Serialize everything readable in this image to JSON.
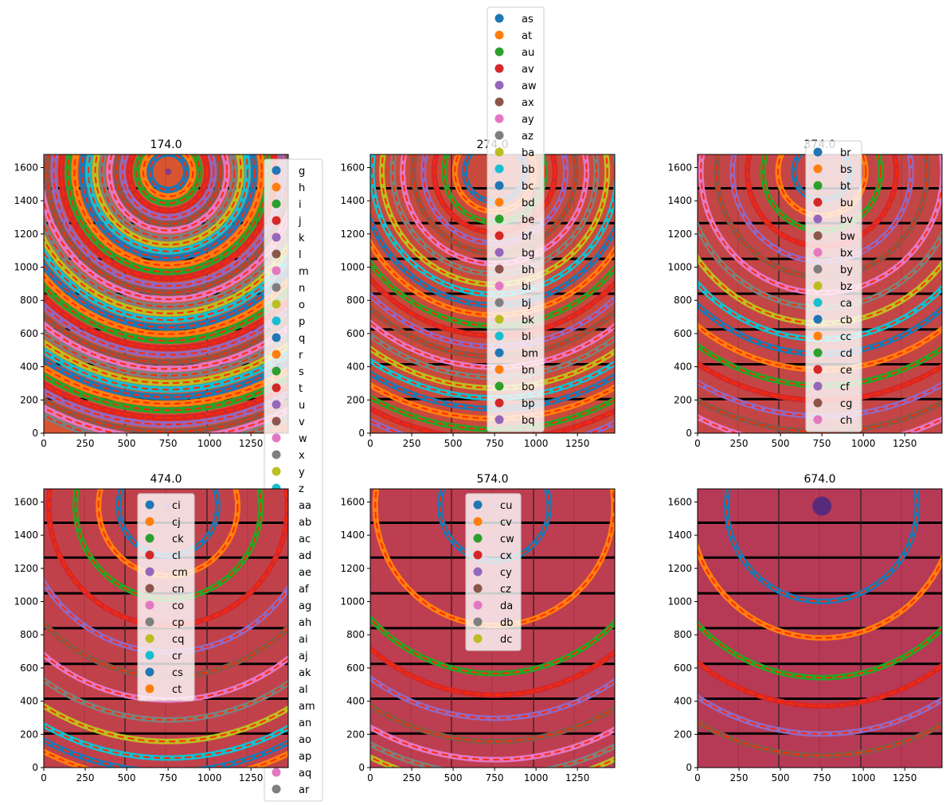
{
  "tab10": [
    "#1f77b4",
    "#ff7f0e",
    "#2ca02c",
    "#d62728",
    "#9467bd",
    "#8c564b",
    "#e377c2",
    "#7f7f7f",
    "#bcbd22",
    "#17becf"
  ],
  "overlay_color": "#ff2a00",
  "chart_data": [
    {
      "type": "image",
      "title": "174.0",
      "xlim": [
        0,
        1475
      ],
      "ylim": [
        0,
        1679
      ],
      "xticks": [
        0,
        250,
        500,
        750,
        1000,
        1250
      ],
      "yticks": [
        0,
        200,
        400,
        600,
        800,
        1000,
        1200,
        1400,
        1600
      ],
      "background": "#d8552f",
      "ring_center": [
        750,
        1575
      ],
      "rings": [
        110,
        150,
        190,
        235,
        275,
        315,
        355,
        400,
        440,
        480,
        520,
        565,
        605,
        645,
        690,
        730,
        770,
        815,
        855,
        895,
        940,
        980,
        1020,
        1065,
        1105,
        1150,
        1190,
        1230,
        1275,
        1315,
        1360,
        1400,
        1440,
        1485,
        1525,
        1570,
        1610,
        1650
      ],
      "legend": {
        "placement": "upper right",
        "labels": [
          "g",
          "h",
          "i",
          "j",
          "k",
          "l",
          "m",
          "n",
          "o",
          "p",
          "q",
          "r",
          "s",
          "t",
          "u",
          "v",
          "w",
          "x",
          "y",
          "z",
          "aa",
          "ab",
          "ac",
          "ad",
          "ae",
          "af",
          "ag",
          "ah",
          "ai",
          "aj",
          "ak",
          "al",
          "am",
          "an",
          "ao",
          "ap",
          "aq",
          "ar"
        ]
      }
    },
    {
      "type": "image",
      "title": "274.0",
      "xlim": [
        0,
        1475
      ],
      "ylim": [
        0,
        1679
      ],
      "xticks": [
        0,
        250,
        500,
        750,
        1000,
        1250
      ],
      "yticks": [
        0,
        200,
        400,
        600,
        800,
        1000,
        1200,
        1400,
        1600
      ],
      "background": "#c94a3c",
      "ring_center": [
        750,
        1575
      ],
      "rings": [
        180,
        240,
        305,
        365,
        430,
        490,
        555,
        615,
        680,
        740,
        805,
        865,
        930,
        990,
        1055,
        1115,
        1180,
        1240,
        1305,
        1365,
        1430,
        1490,
        1555,
        1615,
        1680
      ],
      "legend": {
        "placement": "upper center",
        "labels": [
          "as",
          "at",
          "au",
          "av",
          "aw",
          "ax",
          "ay",
          "az",
          "ba",
          "bb",
          "bc",
          "bd",
          "be",
          "bf",
          "bg",
          "bh",
          "bi",
          "bj",
          "bk",
          "bl",
          "bm",
          "bn",
          "bo",
          "bp",
          "bq"
        ]
      }
    },
    {
      "type": "image",
      "title": "374.0",
      "xlim": [
        0,
        1475
      ],
      "ylim": [
        0,
        1679
      ],
      "xticks": [
        0,
        250,
        500,
        750,
        1000,
        1250
      ],
      "yticks": [
        0,
        200,
        400,
        600,
        800,
        1000,
        1200,
        1400,
        1600
      ],
      "background": "#c44545",
      "ring_center": [
        750,
        1575
      ],
      "rings": [
        170,
        265,
        355,
        450,
        540,
        635,
        730,
        820,
        915,
        1010,
        1100,
        1195,
        1290,
        1380,
        1475,
        1570,
        1660
      ],
      "legend": {
        "placement": "upper center",
        "labels": [
          "br",
          "bs",
          "bt",
          "bu",
          "bv",
          "bw",
          "bx",
          "by",
          "bz",
          "ca",
          "cb",
          "cc",
          "cd",
          "ce",
          "cf",
          "cg",
          "ch"
        ]
      }
    },
    {
      "type": "image",
      "title": "474.0",
      "xlim": [
        0,
        1475
      ],
      "ylim": [
        0,
        1679
      ],
      "xticks": [
        0,
        250,
        500,
        750,
        1000,
        1250
      ],
      "yticks": [
        0,
        200,
        400,
        600,
        800,
        1000,
        1200,
        1400,
        1600
      ],
      "background": "#c1414b",
      "ring_center": [
        750,
        1575
      ],
      "rings": [
        300,
        420,
        560,
        720,
        880,
        1030,
        1170,
        1290,
        1420,
        1520,
        1600,
        1660
      ],
      "legend": {
        "placement": "upper center",
        "labels": [
          "ci",
          "cj",
          "ck",
          "cl",
          "cm",
          "cn",
          "co",
          "cp",
          "cq",
          "cr",
          "cs",
          "ct"
        ]
      }
    },
    {
      "type": "image",
      "title": "574.0",
      "xlim": [
        0,
        1475
      ],
      "ylim": [
        0,
        1679
      ],
      "xticks": [
        0,
        250,
        500,
        750,
        1000,
        1250
      ],
      "yticks": [
        0,
        200,
        400,
        600,
        800,
        1000,
        1200,
        1400,
        1600
      ],
      "background": "#bd3e50",
      "ring_center": [
        750,
        1575
      ],
      "rings": [
        330,
        720,
        1010,
        1140,
        1280,
        1420,
        1530,
        1620,
        1690
      ],
      "legend": {
        "placement": "upper center",
        "labels": [
          "cu",
          "cv",
          "cw",
          "cx",
          "cy",
          "cz",
          "da",
          "db",
          "dc"
        ]
      }
    },
    {
      "type": "image",
      "title": "674.0",
      "xlim": [
        0,
        1475
      ],
      "ylim": [
        0,
        1679
      ],
      "xticks": [
        0,
        250,
        500,
        750,
        1000,
        1250
      ],
      "yticks": [
        0,
        200,
        400,
        600,
        800,
        1000,
        1200,
        1400,
        1600
      ],
      "background": "#b63a56",
      "ring_center": [
        750,
        1575
      ],
      "rings": [
        575,
        795,
        1035,
        1205,
        1375,
        1505
      ],
      "legend": null
    }
  ]
}
